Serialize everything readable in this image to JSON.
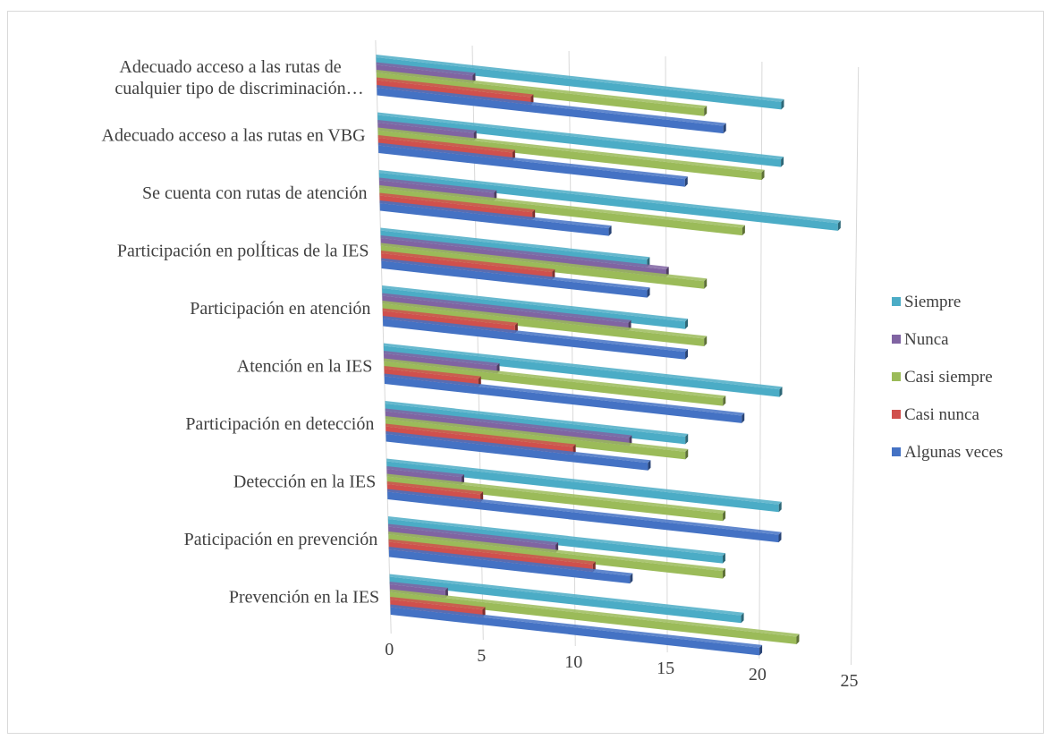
{
  "chart_data": {
    "type": "bar",
    "orientation": "horizontal",
    "style": "3d-perspective",
    "categories": [
      "Prevención en la IES",
      "Paticipación en prevención",
      "Detección en la IES",
      "Participación en detección",
      "Atención en la IES",
      "Participación en atención",
      "Participación en polÍticas de la IES",
      "Se cuenta con rutas de atención",
      "Adecuado acceso a las rutas en VBG",
      "Adecuado acceso a las rutas de cualquier tipo de discriminación…"
    ],
    "series": [
      {
        "name": "Algunas veces",
        "color": "#4472c4",
        "values": [
          20,
          13,
          21,
          14,
          19,
          16,
          14,
          12,
          16,
          18
        ]
      },
      {
        "name": "Casi nunca",
        "color": "#d0504d",
        "values": [
          5,
          11,
          5,
          10,
          5,
          7,
          9,
          8,
          7,
          8
        ]
      },
      {
        "name": "Casi siempre",
        "color": "#9bbb59",
        "values": [
          22,
          18,
          18,
          16,
          18,
          17,
          17,
          19,
          20,
          17
        ]
      },
      {
        "name": "Nunca",
        "color": "#8064a2",
        "values": [
          3,
          9,
          4,
          13,
          6,
          13,
          15,
          6,
          5,
          5
        ]
      },
      {
        "name": "Siempre",
        "color": "#4bacc6",
        "values": [
          19,
          18,
          21,
          16,
          21,
          16,
          14,
          24,
          21,
          21
        ]
      }
    ],
    "x_ticks": [
      "0",
      "5",
      "10",
      "15",
      "20",
      "25"
    ],
    "xlim": [
      0,
      25
    ],
    "legend_order": [
      "Siempre",
      "Nunca",
      "Casi siempre",
      "Casi nunca",
      "Algunas veces"
    ],
    "legend_position": "right",
    "grid": true
  }
}
